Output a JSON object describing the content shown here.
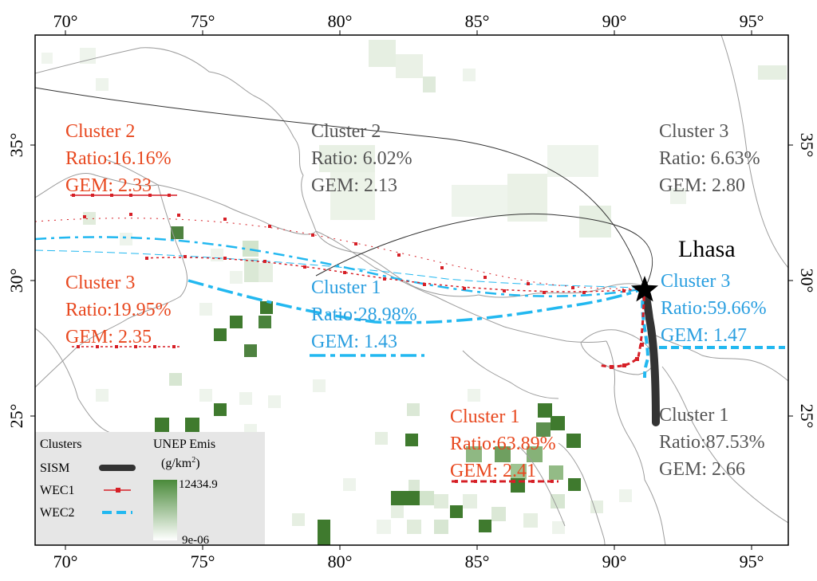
{
  "axis": {
    "x_ticks": [
      "70°",
      "75°",
      "80°",
      "85°",
      "90°",
      "95°"
    ],
    "y_ticks": [
      "25°",
      "30°",
      "35°"
    ]
  },
  "place": {
    "name": "Lhasa"
  },
  "annotations": {
    "wec1_c2": {
      "name": "Cluster 2",
      "ratio": "Ratio:16.16%",
      "gem": "GEM: 2.33"
    },
    "wec1_c3": {
      "name": "Cluster 3",
      "ratio": "Ratio:19.95%",
      "gem": "GEM: 2.35"
    },
    "wec1_c1": {
      "name": "Cluster 1",
      "ratio": "Ratio:63.89%",
      "gem": "GEM: 2.41"
    },
    "wec2_c1": {
      "name": "Cluster 1",
      "ratio": "Ratio:28.98%",
      "gem": "GEM: 1.43"
    },
    "wec2_c3": {
      "name": "Cluster 3",
      "ratio": "Ratio:59.66%",
      "gem": "GEM: 1.47"
    },
    "sism_c2": {
      "name": "Cluster 2",
      "ratio": "Ratio: 6.02%",
      "gem": "GEM: 2.13"
    },
    "sism_c3": {
      "name": "Cluster 3",
      "ratio": "Ratio: 6.63%",
      "gem": "GEM: 2.80"
    },
    "sism_c1": {
      "name": "Cluster 1",
      "ratio": "Ratio:87.53%",
      "gem": "GEM: 2.66"
    }
  },
  "legend": {
    "title": "Clusters",
    "items": [
      "SISM",
      "WEC1",
      "WEC2"
    ],
    "colorbar_title": "UNEP Emis",
    "colorbar_unit": "(g/km",
    "colorbar_unit_sup": "2",
    "colorbar_unit_close": ")",
    "colorbar_max": "12434.9",
    "colorbar_min": "9e-06"
  },
  "colors": {
    "wec1": "#e8481f",
    "wec2": "#2a9fe0",
    "sism": "#555555",
    "wec1_line": "#d61f26",
    "wec2_line": "#22b8f0",
    "sism_line": "#333333",
    "emission_high": "#3f7a2e"
  }
}
